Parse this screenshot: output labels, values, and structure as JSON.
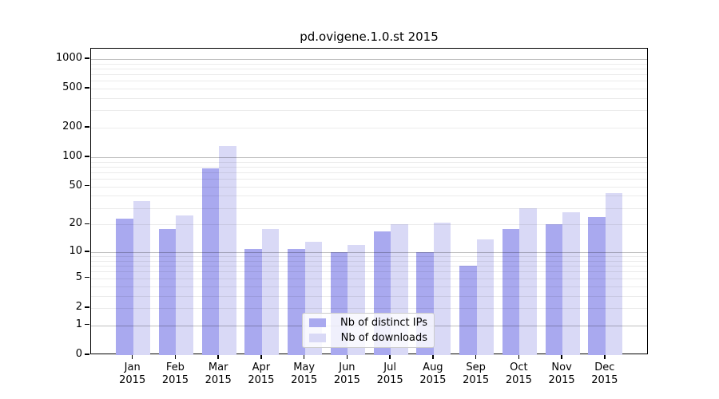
{
  "title": "pd.ovigene.1.0.st 2015",
  "chart_data": {
    "type": "bar",
    "title": "pd.ovigene.1.0.st 2015",
    "categories": [
      "Jan",
      "Feb",
      "Mar",
      "Apr",
      "May",
      "Jun",
      "Jul",
      "Aug",
      "Sep",
      "Oct",
      "Nov",
      "Dec"
    ],
    "category_year": "2015",
    "series": [
      {
        "name": "Nb of distinct IPs",
        "color": "#a9a9ef",
        "values": [
          23,
          18,
          77,
          11,
          11,
          10,
          17,
          10,
          7,
          18,
          20,
          24
        ]
      },
      {
        "name": "Nb of downloads",
        "color": "#d9d9f6",
        "values": [
          35,
          25,
          130,
          18,
          13,
          12,
          20,
          21,
          14,
          30,
          27,
          43
        ]
      }
    ],
    "xlabel": "",
    "ylabel": "",
    "y_scale": "log1p",
    "y_tick_values": [
      0,
      1,
      2,
      5,
      10,
      20,
      50,
      100,
      200,
      500,
      1000
    ],
    "y_minor_grid_values": [
      2,
      3,
      4,
      5,
      6,
      7,
      8,
      9,
      20,
      30,
      40,
      50,
      60,
      70,
      80,
      90,
      200,
      300,
      400,
      500,
      600,
      700,
      800,
      900
    ],
    "y_major_grid_values": [
      1,
      10,
      100,
      1000
    ],
    "ylim": [
      0,
      1280
    ],
    "grid": "horizontal major+minor, drawn over bars",
    "legend_position": "inside lower-center"
  },
  "legend": {
    "items": [
      {
        "label": "Nb of distinct IPs"
      },
      {
        "label": "Nb of downloads"
      }
    ]
  },
  "colors": {
    "bar_distinct_ips": "#a9a9ef",
    "bar_downloads": "#d9d9f6",
    "grid_major": "rgba(0,0,0,0.25)",
    "grid_minor": "rgba(0,0,0,0.08)",
    "axis": "#000000",
    "background": "#ffffff"
  }
}
